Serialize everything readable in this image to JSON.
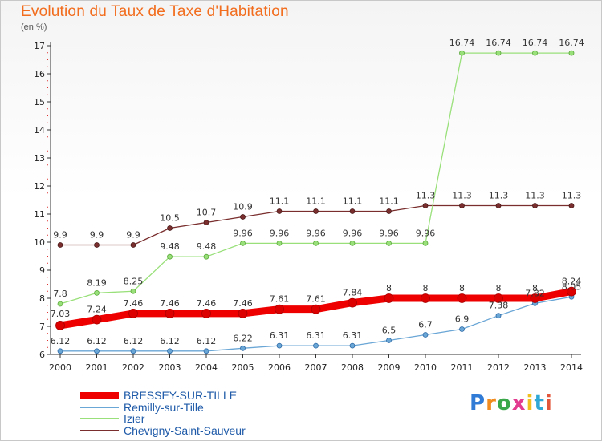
{
  "title": "Evolution du Taux de Taxe d'Habitation",
  "unit_label": "(en %)",
  "logo": {
    "text": "Proxiti",
    "colors": [
      "#2f7bd6",
      "#f28c1e",
      "#3aa84a",
      "#e23b8f",
      "#f2c01e",
      "#2fa8d6",
      "#e2553b"
    ]
  },
  "chart_data": {
    "type": "line",
    "title": "Evolution du Taux de Taxe d'Habitation",
    "ylabel": "(en %)",
    "xlabel": "",
    "ylim": [
      6,
      17
    ],
    "yticks": [
      6,
      7,
      8,
      9,
      10,
      11,
      12,
      13,
      14,
      15,
      16,
      17
    ],
    "grid": false,
    "legend_position": "bottom-left",
    "categories": [
      "2000",
      "2001",
      "2002",
      "2003",
      "2004",
      "2005",
      "2006",
      "2007",
      "2008",
      "2009",
      "2010",
      "2011",
      "2012",
      "2013",
      "2014"
    ],
    "series": [
      {
        "name": "BRESSEY-SUR-TILLE",
        "color": "#ee0000",
        "width": 9,
        "values": [
          7.03,
          7.24,
          7.46,
          7.46,
          7.46,
          7.46,
          7.61,
          7.61,
          7.84,
          8,
          8,
          8,
          8,
          8,
          8.24
        ],
        "labels": [
          "7.03",
          "7.24",
          "7.46",
          "7.46",
          "7.46",
          "7.46",
          "7.61",
          "7.61",
          "7.84",
          "8",
          "8",
          "8",
          "8",
          "8",
          "8.24"
        ]
      },
      {
        "name": "Remilly-sur-Tille",
        "color": "#6aa6d6",
        "width": 1.3,
        "values": [
          6.12,
          6.12,
          6.12,
          6.12,
          6.12,
          6.22,
          6.31,
          6.31,
          6.31,
          6.5,
          6.7,
          6.9,
          7.38,
          7.82,
          8.05
        ],
        "labels": [
          "6.12",
          "6.12",
          "6.12",
          "6.12",
          "6.12",
          "6.22",
          "6.31",
          "6.31",
          "6.31",
          "6.5",
          "6.7",
          "6.9",
          "7.38",
          "7.82",
          "8.05"
        ]
      },
      {
        "name": "Izier",
        "color": "#99e07a",
        "width": 1.3,
        "values": [
          7.8,
          8.19,
          8.25,
          9.48,
          9.48,
          9.96,
          9.96,
          9.96,
          9.96,
          9.96,
          9.96,
          16.74,
          16.74,
          16.74,
          16.74
        ],
        "labels": [
          "7.8",
          "8.19",
          "8.25",
          "9.48",
          "9.48",
          "9.96",
          "9.96",
          "9.96",
          "9.96",
          "9.96",
          "9.96",
          "16.74",
          "16.74",
          "16.74",
          "16.74"
        ]
      },
      {
        "name": "Chevigny-Saint-Sauveur",
        "color": "#7a2e2e",
        "width": 1.3,
        "values": [
          9.9,
          9.9,
          9.9,
          10.5,
          10.7,
          10.9,
          11.1,
          11.1,
          11.1,
          11.1,
          11.3,
          11.3,
          11.3,
          11.3,
          11.3
        ],
        "labels": [
          "9.9",
          "9.9",
          "9.9",
          "10.5",
          "10.7",
          "10.9",
          "11.1",
          "11.1",
          "11.1",
          "11.1",
          "11.3",
          "11.3",
          "11.3",
          "11.3",
          "11.3"
        ]
      }
    ]
  }
}
